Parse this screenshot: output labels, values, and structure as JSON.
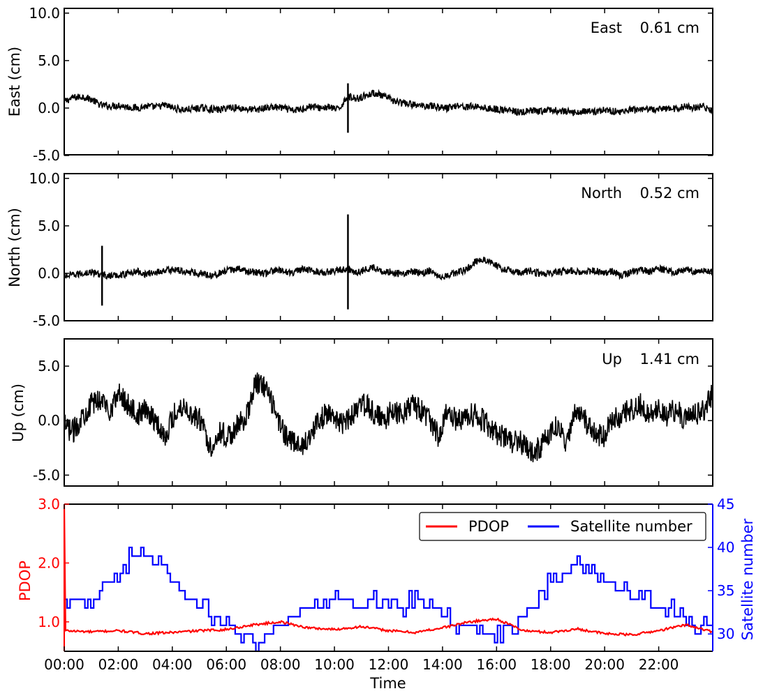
{
  "chart_data": [
    {
      "type": "line",
      "ylabel": "East (cm)",
      "annotation": {
        "name": "East",
        "value": "0.61 cm"
      },
      "ylim": [
        -5.0,
        10.5
      ],
      "yticks": [
        -5.0,
        0.0,
        5.0,
        10.0
      ],
      "ytick_labels": [
        "-5.0",
        "0.0",
        "5.0",
        "10.0"
      ],
      "xlim_hours": [
        0,
        24
      ],
      "series": [
        {
          "color": "#000000",
          "values": [
            0.7,
            1.1,
            1.2,
            0.9,
            0.3,
            0.2,
            0.3,
            0.1,
            0.0,
            0.2,
            0.1,
            0.3,
            0.0,
            -0.2,
            -0.1,
            0.0,
            -0.1,
            -0.2,
            0.1,
            0.0,
            -0.1,
            -0.2,
            0.0,
            0.1,
            0.0,
            -0.3,
            -0.1,
            0.2,
            0.0,
            0.1,
            -0.2,
            1.2,
            1.0,
            1.3,
            1.6,
            1.2,
            0.8,
            0.5,
            0.4,
            0.2,
            0.3,
            0.1,
            0.0,
            0.3,
            0.1,
            0.2,
            0.0,
            -0.1,
            -0.2,
            -0.3,
            -0.5,
            -0.3,
            -0.4,
            -0.2,
            -0.3,
            -0.4,
            -0.5,
            -0.3,
            -0.4,
            -0.2,
            -0.3,
            -0.4,
            -0.2,
            -0.3,
            -0.1,
            -0.2,
            0.0,
            -0.1,
            0.2,
            0.0,
            0.2,
            -0.5
          ]
        }
      ],
      "spikes": [
        {
          "x": 10.5,
          "min": -2.6,
          "max": 2.6
        }
      ]
    },
    {
      "type": "line",
      "ylabel": "North (cm)",
      "annotation": {
        "name": "North",
        "value": "0.52 cm"
      },
      "ylim": [
        -5.0,
        10.5
      ],
      "yticks": [
        -5.0,
        0.0,
        5.0,
        10.0
      ],
      "ytick_labels": [
        "-5.0",
        "0.0",
        "5.0",
        "10.0"
      ],
      "xlim_hours": [
        0,
        24
      ],
      "series": [
        {
          "color": "#000000",
          "values": [
            -0.3,
            -0.2,
            0.0,
            0.1,
            -0.1,
            -0.3,
            -0.2,
            0.0,
            0.2,
            -0.1,
            0.1,
            0.3,
            0.4,
            0.2,
            0.1,
            0.0,
            -0.2,
            0.0,
            0.3,
            0.5,
            0.2,
            0.1,
            0.0,
            0.3,
            0.2,
            0.1,
            0.4,
            0.3,
            0.1,
            0.2,
            0.3,
            0.5,
            0.1,
            0.4,
            0.6,
            0.2,
            0.1,
            -0.1,
            0.2,
            0.0,
            0.3,
            -0.3,
            -0.2,
            0.1,
            0.4,
            1.2,
            1.5,
            1.0,
            0.4,
            0.3,
            0.1,
            0.2,
            0.0,
            -0.1,
            0.1,
            0.3,
            0.2,
            0.1,
            0.3,
            0.0,
            0.2,
            -0.3,
            0.1,
            0.4,
            0.2,
            0.5,
            0.3,
            0.1,
            0.4,
            0.2,
            0.3,
            0.1
          ]
        }
      ],
      "spikes": [
        {
          "x": 1.4,
          "min": -3.4,
          "max": 2.9
        },
        {
          "x": 10.5,
          "min": -3.8,
          "max": 6.2
        }
      ]
    },
    {
      "type": "line",
      "ylabel": "Up (cm)",
      "annotation": {
        "name": "Up",
        "value": "1.41 cm"
      },
      "ylim": [
        -6.0,
        7.5
      ],
      "yticks": [
        -5.0,
        0.0,
        5.0
      ],
      "ytick_labels": [
        "-5.0",
        "0.0",
        "5.0"
      ],
      "xlim_hours": [
        0,
        24
      ],
      "series": [
        {
          "color": "#000000",
          "values": [
            -0.5,
            -1.0,
            0.5,
            1.5,
            2.0,
            1.0,
            2.5,
            1.5,
            0.5,
            1.0,
            0.0,
            -1.5,
            0.5,
            1.5,
            0.5,
            0.0,
            -2.5,
            -1.0,
            -1.5,
            -0.5,
            0.5,
            3.5,
            3.0,
            1.0,
            -1.0,
            -2.0,
            -2.5,
            -1.0,
            0.0,
            1.0,
            -0.5,
            0.0,
            1.0,
            1.5,
            0.5,
            0.0,
            1.0,
            0.5,
            1.5,
            1.0,
            0.0,
            -1.5,
            1.0,
            0.0,
            0.5,
            0.5,
            0.0,
            -1.0,
            -1.5,
            -2.0,
            -2.0,
            -3.0,
            -2.5,
            -1.5,
            -0.5,
            -2.0,
            1.0,
            0.0,
            -1.0,
            -1.5,
            0.0,
            0.5,
            1.0,
            1.5,
            0.5,
            1.0,
            0.5,
            1.0,
            0.0,
            0.5,
            1.0,
            2.5
          ]
        }
      ]
    },
    {
      "type": "line",
      "xlabel": "Time",
      "xticks_hours": [
        0,
        2,
        4,
        6,
        8,
        10,
        12,
        14,
        16,
        18,
        20,
        22
      ],
      "xtick_labels": [
        "00:00",
        "02:00",
        "04:00",
        "06:00",
        "08:00",
        "10:00",
        "12:00",
        "14:00",
        "16:00",
        "18:00",
        "20:00",
        "22:00"
      ],
      "xlim_hours": [
        0,
        24
      ],
      "left_axis": {
        "label": "PDOP",
        "color": "#ff0000",
        "ylim": [
          0.5,
          3.0
        ],
        "yticks": [
          1.0,
          2.0,
          3.0
        ],
        "ytick_labels": [
          "1.0",
          "2.0",
          "3.0"
        ]
      },
      "right_axis": {
        "label": "Satellite number",
        "color": "#0000ff",
        "ylim": [
          28,
          45
        ],
        "yticks": [
          30,
          35,
          40,
          45
        ],
        "ytick_labels": [
          "30",
          "35",
          "40",
          "45"
        ]
      },
      "legend": {
        "placement": "top-right",
        "entries": [
          {
            "label": "PDOP",
            "color": "#ff0000"
          },
          {
            "label": "Satellite number",
            "color": "#0000ff"
          }
        ]
      },
      "series": [
        {
          "name": "PDOP",
          "axis": "left",
          "color": "#ff0000",
          "x": [
            0,
            0.05,
            1,
            2,
            3,
            4,
            5,
            6,
            7,
            8,
            9,
            10,
            11,
            12,
            13,
            14,
            15,
            16,
            17,
            18,
            19,
            20,
            21,
            22,
            23,
            24
          ],
          "y": [
            3.0,
            0.85,
            0.83,
            0.85,
            0.8,
            0.82,
            0.85,
            0.87,
            0.95,
            1.0,
            0.9,
            0.87,
            0.92,
            0.85,
            0.82,
            0.9,
            1.0,
            1.05,
            0.85,
            0.82,
            0.88,
            0.8,
            0.78,
            0.85,
            0.95,
            0.83
          ]
        },
        {
          "name": "Satellite number",
          "axis": "right",
          "color": "#0000ff",
          "x": [
            0,
            0.5,
            1,
            1.5,
            2,
            2.5,
            3,
            3.5,
            4,
            4.5,
            5,
            5.5,
            6,
            6.5,
            7,
            7.5,
            8,
            8.5,
            9,
            9.5,
            10,
            10.5,
            11,
            11.5,
            12,
            12.5,
            13,
            13.5,
            14,
            14.5,
            15,
            15.5,
            16,
            16.5,
            17,
            17.5,
            18,
            18.5,
            19,
            19.5,
            20,
            20.5,
            21,
            21.5,
            22,
            22.5,
            23,
            23.5,
            24
          ],
          "y": [
            34,
            34,
            33,
            36,
            37,
            39,
            39,
            39,
            36,
            34,
            33,
            32,
            31,
            30,
            29,
            30,
            31,
            32,
            33,
            33,
            34,
            34,
            33,
            34,
            34,
            33,
            34,
            33,
            32,
            31,
            31,
            30,
            30,
            31,
            32,
            34,
            36,
            37,
            38,
            38,
            36,
            35,
            34,
            34,
            33,
            33,
            32,
            31,
            31
          ]
        }
      ]
    }
  ]
}
